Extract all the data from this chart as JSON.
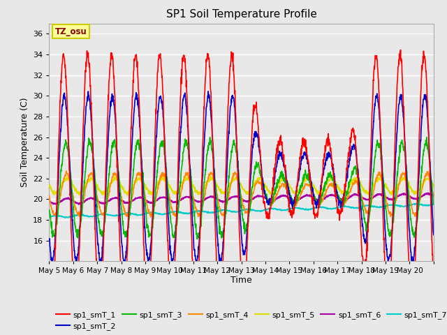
{
  "title": "SP1 Soil Temperature Profile",
  "xlabel": "Time",
  "ylabel": "Soil Temperature (C)",
  "ylim": [
    14,
    37
  ],
  "yticks": [
    16,
    18,
    20,
    22,
    24,
    26,
    28,
    30,
    32,
    34,
    36
  ],
  "date_labels": [
    "May 5",
    "May 6",
    "May 7",
    "May 8",
    "May 9",
    "May 10",
    "May 11",
    "May 12",
    "May 13",
    "May 14",
    "May 15",
    "May 16",
    "May 17",
    "May 18",
    "May 19",
    "May 20"
  ],
  "annotation_text": "TZ_osu",
  "annotation_color": "#8B0000",
  "annotation_bg": "#FFFF99",
  "annotation_border": "#CCCC00",
  "series_colors": {
    "sp1_smT_1": "#FF0000",
    "sp1_smT_2": "#0000CC",
    "sp1_smT_3": "#00BB00",
    "sp1_smT_4": "#FF8800",
    "sp1_smT_5": "#DDDD00",
    "sp1_smT_6": "#AA00AA",
    "sp1_smT_7": "#00CCCC"
  },
  "figsize": [
    6.4,
    4.8
  ],
  "dpi": 100
}
